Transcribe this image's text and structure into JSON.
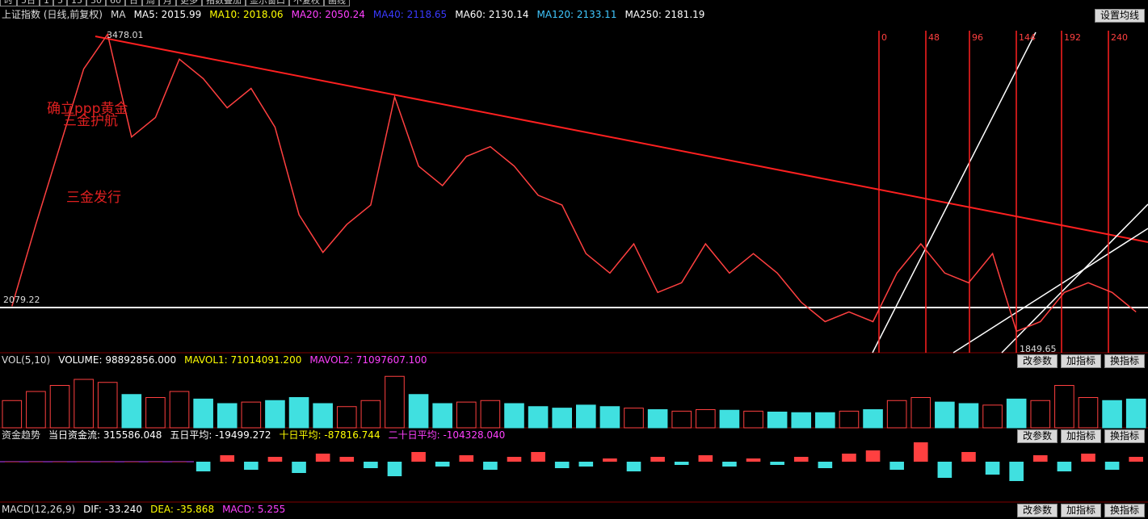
{
  "toolbar": {
    "tabs": [
      "时",
      "5日",
      "1",
      "5",
      "15",
      "30",
      "60",
      "日",
      "周",
      "月",
      "更多",
      "指数叠加",
      "显示窗口",
      "不复权",
      "画线"
    ]
  },
  "main": {
    "title": "上证指数 (日线,前复权)",
    "indicator": "MA",
    "ma": [
      {
        "label": "MA5: 2015.99",
        "color": "#ffffff"
      },
      {
        "label": "MA10: 2018.06",
        "color": "#ffff00"
      },
      {
        "label": "MA20: 2050.24",
        "color": "#ff40ff"
      },
      {
        "label": "MA40: 2118.65",
        "color": "#3a3aff"
      },
      {
        "label": "MA60: 2130.14",
        "color": "#ffffff"
      },
      {
        "label": "MA120: 2133.11",
        "color": "#40c8ff"
      },
      {
        "label": "MA250: 2181.19",
        "color": "#ffffff"
      }
    ],
    "button": "设置均线",
    "high_label": "3478.01",
    "level_label": "2079.22",
    "low_label": "1849.65",
    "annotations": [
      "确立ppp黄金",
      "三金护航",
      "三金发行"
    ],
    "gann": [
      "0",
      "48",
      "96",
      "144",
      "192",
      "240"
    ],
    "series": {
      "color": "#ff4040",
      "ylim": [
        1840,
        3530
      ],
      "values": [
        2079,
        2500,
        2900,
        3300,
        3478,
        2950,
        3050,
        3350,
        3250,
        3100,
        3200,
        3000,
        2550,
        2356,
        2500,
        2600,
        3156,
        2800,
        2700,
        2850,
        2900,
        2800,
        2650,
        2600,
        2350,
        2250,
        2400,
        2150,
        2200,
        2400,
        2250,
        2350,
        2250,
        2100,
        2000,
        2050,
        2000,
        2250,
        2400,
        2250,
        2200,
        2350,
        1950,
        2000,
        2150,
        2200,
        2150,
        2050
      ]
    }
  },
  "volume": {
    "labels": [
      {
        "text": "VOL(5,10)",
        "color": "#dddddd"
      },
      {
        "text": "VOLUME: 98892856.000",
        "color": "#ffffff"
      },
      {
        "text": "MAVOL1: 71014091.200",
        "color": "#ffff00"
      },
      {
        "text": "MAVOL2: 71097607.100",
        "color": "#ff40ff"
      }
    ],
    "buttons": [
      "改参数",
      "加指标",
      "换指标"
    ],
    "ylim": [
      0,
      200000000
    ],
    "values": [
      90000000,
      120000000,
      140000000,
      160000000,
      150000000,
      110000000,
      100000000,
      120000000,
      95000000,
      80000000,
      85000000,
      90000000,
      100000000,
      80000000,
      70000000,
      90000000,
      170000000,
      110000000,
      80000000,
      85000000,
      90000000,
      80000000,
      70000000,
      65000000,
      75000000,
      70000000,
      65000000,
      60000000,
      55000000,
      60000000,
      58000000,
      55000000,
      52000000,
      50000000,
      50000000,
      55000000,
      60000000,
      90000000,
      100000000,
      85000000,
      80000000,
      75000000,
      95000000,
      90000000,
      140000000,
      100000000,
      90000000,
      95000000
    ]
  },
  "fund": {
    "labels": [
      {
        "text": "资金趋势",
        "color": "#dddddd"
      },
      {
        "text": "当日资金流: 315586.048",
        "color": "#ffffff"
      },
      {
        "text": "五日平均: -19499.272",
        "color": "#ffffff"
      },
      {
        "text": "十日平均: -87816.744",
        "color": "#ffff00"
      },
      {
        "text": "二十日平均: -104328.040",
        "color": "#ff40ff"
      }
    ],
    "buttons": [
      "改参数",
      "加指标",
      "换指标"
    ],
    "ylim": [
      -2000000,
      2000000
    ],
    "values": [
      0,
      0,
      0,
      0,
      0,
      0,
      0,
      0,
      -600000,
      400000,
      -500000,
      300000,
      -700000,
      500000,
      300000,
      -400000,
      -900000,
      600000,
      -300000,
      400000,
      -500000,
      300000,
      600000,
      -400000,
      -300000,
      200000,
      -600000,
      300000,
      -200000,
      400000,
      -300000,
      200000,
      -200000,
      300000,
      -400000,
      500000,
      700000,
      -500000,
      1200000,
      -1000000,
      600000,
      -800000,
      -1200000,
      400000,
      -600000,
      500000,
      -500000,
      300000
    ]
  },
  "macd": {
    "labels": [
      {
        "text": "MACD(12,26,9)",
        "color": "#dddddd"
      },
      {
        "text": "DIF: -33.240",
        "color": "#ffffff"
      },
      {
        "text": "DEA: -35.868",
        "color": "#ffff00"
      },
      {
        "text": "MACD: 5.255",
        "color": "#ff40ff"
      }
    ],
    "buttons": [
      "改参数",
      "加指标",
      "换指标"
    ]
  }
}
